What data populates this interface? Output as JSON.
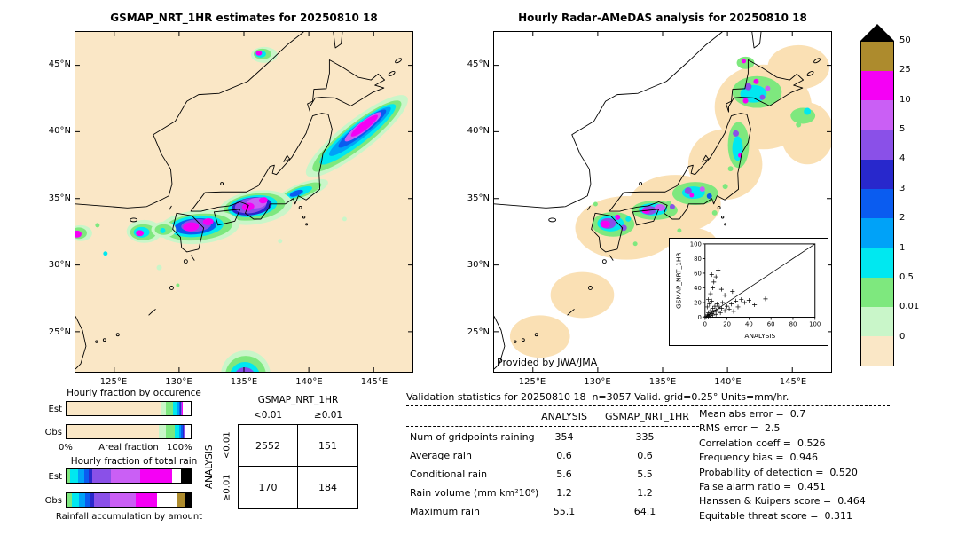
{
  "colors": {
    "cream": "#fae7c6",
    "palegreen": "#c9f6c9",
    "green": "#7ee87e",
    "cyan": "#00e8f0",
    "sky": "#00a2f8",
    "blue": "#0a5cf0",
    "navy": "#2828cc",
    "purple": "#8a50e8",
    "orchid": "#ca5ff5",
    "magenta": "#f500f5",
    "olive": "#ad8b2d",
    "peach": "#fae0b4",
    "white": "#ffffff",
    "black": "#000000"
  },
  "left_map": {
    "title": "GSMAP_NRT_1HR estimates for 20250810 18"
  },
  "right_map": {
    "title": "Hourly Radar-AMeDAS analysis for 20250810 18",
    "credit": "Provided by JWA/JMA"
  },
  "axes": {
    "lat_ticks": [
      "45°N",
      "40°N",
      "35°N",
      "30°N",
      "25°N"
    ],
    "lon_ticks": [
      "125°E",
      "130°E",
      "135°E",
      "140°E",
      "145°E"
    ]
  },
  "colorbar": {
    "labels": [
      "50",
      "25",
      "10",
      "5",
      "4",
      "3",
      "2",
      "1",
      "0.5",
      "0.01",
      "0"
    ],
    "colors": [
      "#ad8b2d",
      "#f500f5",
      "#ca5ff5",
      "#8a50e8",
      "#2828cc",
      "#0a5cf0",
      "#00a2f8",
      "#00e8f0",
      "#7ee87e",
      "#c9f6c9",
      "#fae7c6"
    ],
    "units": "mm/hr"
  },
  "inset": {
    "ylabel": "GSMAP_NRT_1HR",
    "xlabel": "ANALYSIS",
    "ticks": [
      "0",
      "20",
      "40",
      "60",
      "80",
      "100"
    ]
  },
  "fractions": {
    "occurrence_title": "Hourly fraction by occurence",
    "total_title": "Hourly fraction of total rain",
    "areal_label": "Areal fraction",
    "pct_left": "0%",
    "pct_right": "100%",
    "est": "Est",
    "obs": "Obs",
    "bottom_caption": "Rainfall accumulation by amount"
  },
  "contingency": {
    "col_axis": "GSMAP_NRT_1HR",
    "row_axis": "ANALYSIS",
    "col_labels": [
      "<0.01",
      "≥0.01"
    ],
    "row_labels": [
      "<0.01",
      "≥0.01"
    ],
    "values": [
      [
        "2552",
        "151"
      ],
      [
        "170",
        "184"
      ]
    ]
  },
  "stats": {
    "title": "Validation statistics for 20250810 18  n=3057 Valid. grid=0.25° Units=mm/hr.",
    "col_headers": [
      "ANALYSIS",
      "GSMAP_NRT_1HR"
    ],
    "rows": [
      {
        "label": "Num of gridpoints raining",
        "a": "354",
        "g": "335"
      },
      {
        "label": "Average rain",
        "a": "0.6",
        "g": "0.6"
      },
      {
        "label": "Conditional rain",
        "a": "5.6",
        "g": "5.5"
      },
      {
        "label": "Rain volume (mm km²10⁶)",
        "a": "1.2",
        "g": "1.2"
      },
      {
        "label": "Maximum rain",
        "a": "55.1",
        "g": "64.1"
      }
    ],
    "metrics": [
      "Mean abs error =  0.7",
      "RMS error =  2.5",
      "Correlation coeff =  0.526",
      "Frequency bias =  0.946",
      "Probability of detection =  0.520",
      "False alarm ratio =  0.451",
      "Hanssen & Kuipers score =  0.464",
      "Equitable threat score =  0.311"
    ]
  },
  "chart_data": [
    {
      "id": "gsmap_map",
      "type": "heatmap",
      "title": "GSMAP_NRT_1HR estimates for 20250810 18",
      "lon_range": [
        122,
        148
      ],
      "lat_range": [
        22,
        47.5
      ],
      "lon_ticks": [
        125,
        130,
        135,
        140,
        145
      ],
      "lat_ticks": [
        45,
        40,
        35,
        30,
        25
      ],
      "units": "mm/hr",
      "levels": [
        0,
        0.01,
        0.5,
        1,
        2,
        3,
        4,
        5,
        10,
        25,
        50
      ],
      "description": "Satellite hourly rain estimate over Japan; heavy rain bands over Kyushu-Kinki (magenta/purple cores), a NE offshore band toward 145E/42N, and a strong cell near 135E at the southern edge"
    },
    {
      "id": "radar_map",
      "type": "heatmap",
      "title": "Hourly Radar-AMeDAS analysis for 20250810 18",
      "lon_range": [
        122,
        148
      ],
      "lat_range": [
        22,
        47.5
      ],
      "lon_ticks": [
        125,
        130,
        135,
        140,
        145
      ],
      "lat_ticks": [
        45,
        40,
        35,
        30,
        25
      ],
      "units": "mm/hr",
      "levels": [
        0,
        0.01,
        0.5,
        1,
        2,
        3,
        4,
        5,
        10,
        25,
        50
      ],
      "description": "Radar-AMeDAS analysis; radar coverage shown as light-orange lobes along the Japanese archipelago with rain clusters over Kyushu, Kinki, Chubu, Tohoku and Hokkaido"
    },
    {
      "id": "scatter_validation",
      "type": "scatter",
      "xlabel": "ANALYSIS",
      "ylabel": "GSMAP_NRT_1HR",
      "xlim": [
        0,
        100
      ],
      "ylim": [
        0,
        100
      ],
      "diagonal": true,
      "points": [
        [
          1,
          1
        ],
        [
          2,
          3
        ],
        [
          3,
          1
        ],
        [
          3,
          6
        ],
        [
          4,
          4
        ],
        [
          5,
          2
        ],
        [
          5,
          9
        ],
        [
          6,
          5
        ],
        [
          7,
          3
        ],
        [
          7,
          12
        ],
        [
          8,
          7
        ],
        [
          9,
          15
        ],
        [
          10,
          4
        ],
        [
          10,
          10
        ],
        [
          11,
          18
        ],
        [
          12,
          8
        ],
        [
          13,
          14
        ],
        [
          14,
          6
        ],
        [
          15,
          12
        ],
        [
          16,
          20
        ],
        [
          18,
          9
        ],
        [
          20,
          15
        ],
        [
          22,
          11
        ],
        [
          2,
          14
        ],
        [
          4,
          18
        ],
        [
          6,
          22
        ],
        [
          24,
          18
        ],
        [
          26,
          8
        ],
        [
          28,
          22
        ],
        [
          30,
          14
        ],
        [
          33,
          24
        ],
        [
          36,
          20
        ],
        [
          40,
          23
        ],
        [
          45,
          17
        ],
        [
          55,
          25
        ],
        [
          5,
          32
        ],
        [
          7,
          40
        ],
        [
          8,
          48
        ],
        [
          10,
          55
        ],
        [
          12,
          64
        ],
        [
          6,
          58
        ],
        [
          15,
          38
        ],
        [
          18,
          30
        ],
        [
          3,
          24
        ],
        [
          25,
          35
        ]
      ]
    },
    {
      "id": "contingency_table",
      "type": "table",
      "col_axis": "GSMAP_NRT_1HR",
      "row_axis": "ANALYSIS",
      "col_labels": [
        "<0.01",
        "≥0.01"
      ],
      "row_labels": [
        "<0.01",
        "≥0.01"
      ],
      "values": [
        [
          2552,
          151
        ],
        [
          170,
          184
        ]
      ]
    },
    {
      "id": "occurrence_fraction",
      "type": "bar",
      "stacked": true,
      "title": "Hourly fraction by occurence",
      "categories": [
        "Est",
        "Obs"
      ],
      "xlabel": "Areal fraction",
      "xlim": [
        0,
        100
      ],
      "bars": {
        "est": [
          [
            "cream",
            76
          ],
          [
            "palegreen",
            4
          ],
          [
            "green",
            6
          ],
          [
            "cyan",
            3
          ],
          [
            "sky",
            1.5
          ],
          [
            "blue",
            1
          ],
          [
            "navy",
            0.5
          ],
          [
            "purple",
            1
          ],
          [
            "magenta",
            0.5
          ],
          [
            "white",
            6.5
          ]
        ],
        "obs": [
          [
            "cream",
            74
          ],
          [
            "palegreen",
            6
          ],
          [
            "green",
            7
          ],
          [
            "cyan",
            4
          ],
          [
            "sky",
            1.5
          ],
          [
            "blue",
            1
          ],
          [
            "navy",
            0.5
          ],
          [
            "purple",
            1
          ],
          [
            "magenta",
            0.5
          ],
          [
            "white",
            4.5
          ]
        ]
      }
    },
    {
      "id": "total_fraction",
      "type": "bar",
      "stacked": true,
      "title": "Hourly fraction of total rain",
      "categories": [
        "Est",
        "Obs"
      ],
      "xlabel": "Rainfall accumulation by amount",
      "xlim": [
        0,
        100
      ],
      "bars": {
        "est": [
          [
            "green",
            3
          ],
          [
            "cyan",
            6
          ],
          [
            "sky",
            5
          ],
          [
            "blue",
            4
          ],
          [
            "navy",
            3
          ],
          [
            "purple",
            15
          ],
          [
            "orchid",
            23
          ],
          [
            "magenta",
            26
          ],
          [
            "white",
            7
          ],
          [
            "black",
            8
          ]
        ],
        "obs": [
          [
            "green",
            4
          ],
          [
            "cyan",
            6
          ],
          [
            "sky",
            5
          ],
          [
            "blue",
            4
          ],
          [
            "navy",
            3
          ],
          [
            "purple",
            13
          ],
          [
            "orchid",
            21
          ],
          [
            "magenta",
            17
          ],
          [
            "white",
            16
          ],
          [
            "olive",
            7
          ],
          [
            "black",
            4
          ]
        ]
      }
    },
    {
      "id": "validation_stats",
      "type": "table",
      "columns": [
        "ANALYSIS",
        "GSMAP_NRT_1HR"
      ],
      "rows": [
        [
          "Num of gridpoints raining",
          354,
          335
        ],
        [
          "Average rain",
          0.6,
          0.6
        ],
        [
          "Conditional rain",
          5.6,
          5.5
        ],
        [
          "Rain volume (mm km²10⁶)",
          1.2,
          1.2
        ],
        [
          "Maximum rain",
          55.1,
          64.1
        ]
      ],
      "n": 3057,
      "grid": "0.25°",
      "units": "mm/hr",
      "metrics": {
        "mean_abs_error": 0.7,
        "rms_error": 2.5,
        "correlation_coeff": 0.526,
        "frequency_bias": 0.946,
        "probability_of_detection": 0.52,
        "false_alarm_ratio": 0.451,
        "hanssen_kuipers_score": 0.464,
        "equitable_threat_score": 0.311
      }
    }
  ]
}
